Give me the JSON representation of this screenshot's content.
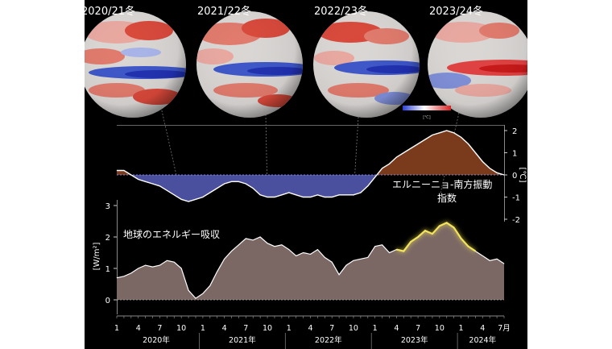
{
  "globes": [
    {
      "label": "2020/21冬"
    },
    {
      "label": "2021/22冬"
    },
    {
      "label": "2022/23冬"
    },
    {
      "label": "2023/24冬"
    }
  ],
  "colorbar_unit": "[℃]",
  "colors": {
    "background": "#000000",
    "warm": "#7a3a1c",
    "cool": "#4a4f9e",
    "energy_fill": "#7b6864",
    "line": "#ffffff",
    "highlight": "#f2e35a"
  },
  "chart_data": [
    {
      "type": "area",
      "title": "エルニーニョ-南方振動指数",
      "title_line1": "エルニーニョ-南方振動",
      "title_line2": "指数",
      "y_unit": "[℃]",
      "ylim": [
        -2,
        2
      ],
      "yticks": [
        -2,
        -1,
        0,
        1,
        2
      ],
      "x": [
        1,
        2,
        3,
        4,
        5,
        6,
        7,
        8,
        9,
        10,
        11,
        12,
        13,
        14,
        15,
        16,
        17,
        18,
        19,
        20,
        21,
        22,
        23,
        24,
        25,
        26,
        27,
        28,
        29,
        30,
        31,
        32,
        33,
        34,
        35,
        36,
        37,
        38,
        39,
        40,
        41,
        42,
        43,
        44,
        45,
        46,
        47,
        48,
        49,
        50,
        51,
        52,
        53,
        54,
        55
      ],
      "values": [
        0.2,
        0.2,
        0.0,
        -0.2,
        -0.3,
        -0.4,
        -0.5,
        -0.7,
        -0.9,
        -1.1,
        -1.2,
        -1.1,
        -1.0,
        -0.8,
        -0.6,
        -0.4,
        -0.3,
        -0.3,
        -0.4,
        -0.6,
        -0.9,
        -1.0,
        -1.0,
        -0.9,
        -0.8,
        -0.9,
        -1.0,
        -1.0,
        -0.9,
        -1.0,
        -1.0,
        -0.9,
        -0.9,
        -0.9,
        -0.8,
        -0.5,
        -0.1,
        0.3,
        0.5,
        0.8,
        1.0,
        1.2,
        1.4,
        1.6,
        1.8,
        1.9,
        2.0,
        1.9,
        1.7,
        1.4,
        1.0,
        0.6,
        0.3,
        0.1,
        0.0
      ]
    },
    {
      "type": "area",
      "title": "地球のエネルギー吸収",
      "y_unit": "[W/m²]",
      "ylim": [
        0,
        3
      ],
      "yticks": [
        0,
        1,
        2,
        3
      ],
      "x": [
        1,
        2,
        3,
        4,
        5,
        6,
        7,
        8,
        9,
        10,
        11,
        12,
        13,
        14,
        15,
        16,
        17,
        18,
        19,
        20,
        21,
        22,
        23,
        24,
        25,
        26,
        27,
        28,
        29,
        30,
        31,
        32,
        33,
        34,
        35,
        36,
        37,
        38,
        39,
        40,
        41,
        42,
        43,
        44,
        45,
        46,
        47,
        48,
        49,
        50,
        51,
        52,
        53,
        54,
        55
      ],
      "values": [
        0.7,
        0.75,
        0.85,
        1.0,
        1.1,
        1.05,
        1.1,
        1.25,
        1.2,
        1.0,
        0.3,
        0.05,
        0.2,
        0.45,
        0.9,
        1.3,
        1.55,
        1.75,
        1.95,
        1.9,
        2.0,
        1.8,
        1.7,
        1.75,
        1.6,
        1.4,
        1.5,
        1.45,
        1.6,
        1.35,
        1.2,
        0.8,
        1.1,
        1.25,
        1.3,
        1.35,
        1.7,
        1.75,
        1.5,
        1.6,
        1.55,
        1.85,
        2.0,
        2.2,
        2.1,
        2.35,
        2.45,
        2.3,
        1.95,
        1.7,
        1.55,
        1.4,
        1.25,
        1.3,
        1.15
      ],
      "highlight_range": [
        40,
        51
      ]
    }
  ],
  "x_axis": {
    "ticks": [
      {
        "pos": 1,
        "label": "1"
      },
      {
        "pos": 4,
        "label": "4"
      },
      {
        "pos": 7,
        "label": "7"
      },
      {
        "pos": 10,
        "label": "10"
      },
      {
        "pos": 13,
        "label": "1"
      },
      {
        "pos": 16,
        "label": "4"
      },
      {
        "pos": 19,
        "label": "7"
      },
      {
        "pos": 22,
        "label": "10"
      },
      {
        "pos": 25,
        "label": "1"
      },
      {
        "pos": 28,
        "label": "4"
      },
      {
        "pos": 31,
        "label": "7"
      },
      {
        "pos": 34,
        "label": "10"
      },
      {
        "pos": 37,
        "label": "1"
      },
      {
        "pos": 40,
        "label": "4"
      },
      {
        "pos": 43,
        "label": "7"
      },
      {
        "pos": 46,
        "label": "10"
      },
      {
        "pos": 49,
        "label": "1"
      },
      {
        "pos": 52,
        "label": "4"
      },
      {
        "pos": 55,
        "label": "7月"
      }
    ],
    "years": [
      "2020年",
      "2021年",
      "2022年",
      "2023年",
      "2024年"
    ]
  }
}
